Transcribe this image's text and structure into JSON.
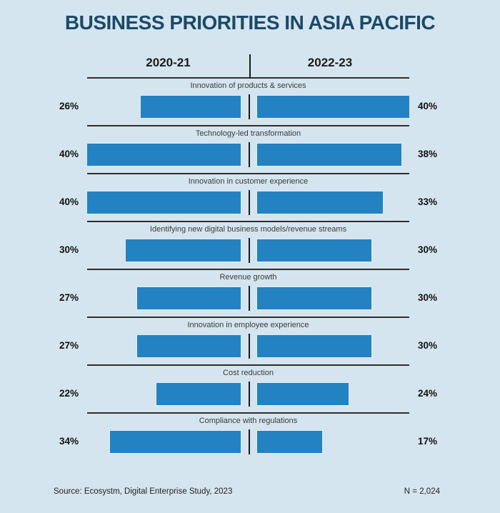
{
  "colors": {
    "background": "#d5e5ef",
    "bar": "#2383c2",
    "title": "#1b4a68",
    "rule": "#2e2e2e",
    "text": "#1a1a1a"
  },
  "chart_data": {
    "type": "bar",
    "subtype": "paired-horizontal-butterfly",
    "title": "BUSINESS PRIORITIES IN ASIA PACIFIC",
    "categories": [
      "Innovation of products & services",
      "Technology-led transformation",
      "Innovation in customer experience",
      "Identifying new digital business models/revenue streams",
      "Revenue growth",
      "Innovation in employee experience",
      "Cost reduction",
      "Compliance with regulations"
    ],
    "series": [
      {
        "name": "2020-21",
        "values": [
          26,
          40,
          40,
          30,
          27,
          27,
          22,
          34
        ]
      },
      {
        "name": "2022-23",
        "values": [
          40,
          38,
          33,
          30,
          30,
          30,
          24,
          17
        ]
      }
    ],
    "value_unit": "%",
    "xlim": [
      0,
      40
    ],
    "grid": "horizontal-row-dividers",
    "legend_position": "top-column-headers",
    "source": "Source: Ecosystm, Digital Enterprise Study, 2023",
    "sample_size": "N = 2,024"
  }
}
